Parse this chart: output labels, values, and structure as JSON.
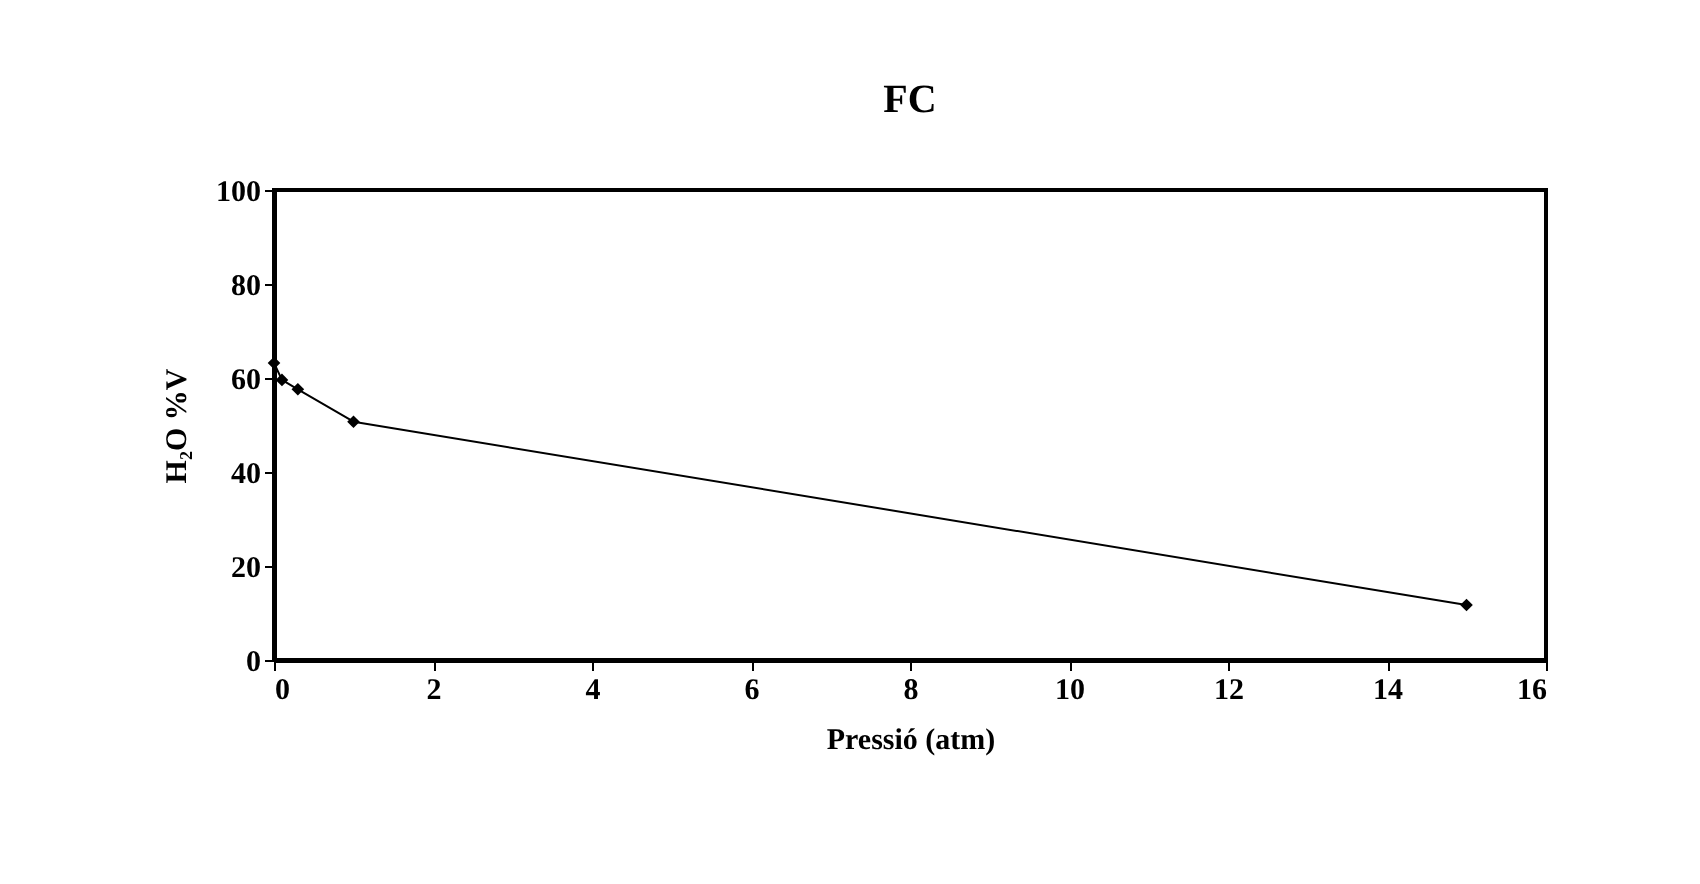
{
  "chart_data": {
    "type": "line",
    "title": "FC",
    "xlabel": "Pressió (atm)",
    "ylabel": "H₂O %V",
    "x": [
      0,
      0.1,
      0.3,
      1,
      15
    ],
    "series": [
      {
        "color": "#000000",
        "values": [
          63.2,
          59.6,
          57.6,
          50.7,
          11.7
        ]
      }
    ],
    "xlim": [
      0,
      16
    ],
    "xticks": [
      0,
      2,
      4,
      6,
      8,
      10,
      12,
      14,
      16
    ],
    "ylim": [
      0,
      100
    ],
    "yticks": [
      0,
      20,
      40,
      60,
      80,
      100
    ],
    "grid": false,
    "legend": false,
    "marker": "diamond",
    "line_style": "solid"
  }
}
